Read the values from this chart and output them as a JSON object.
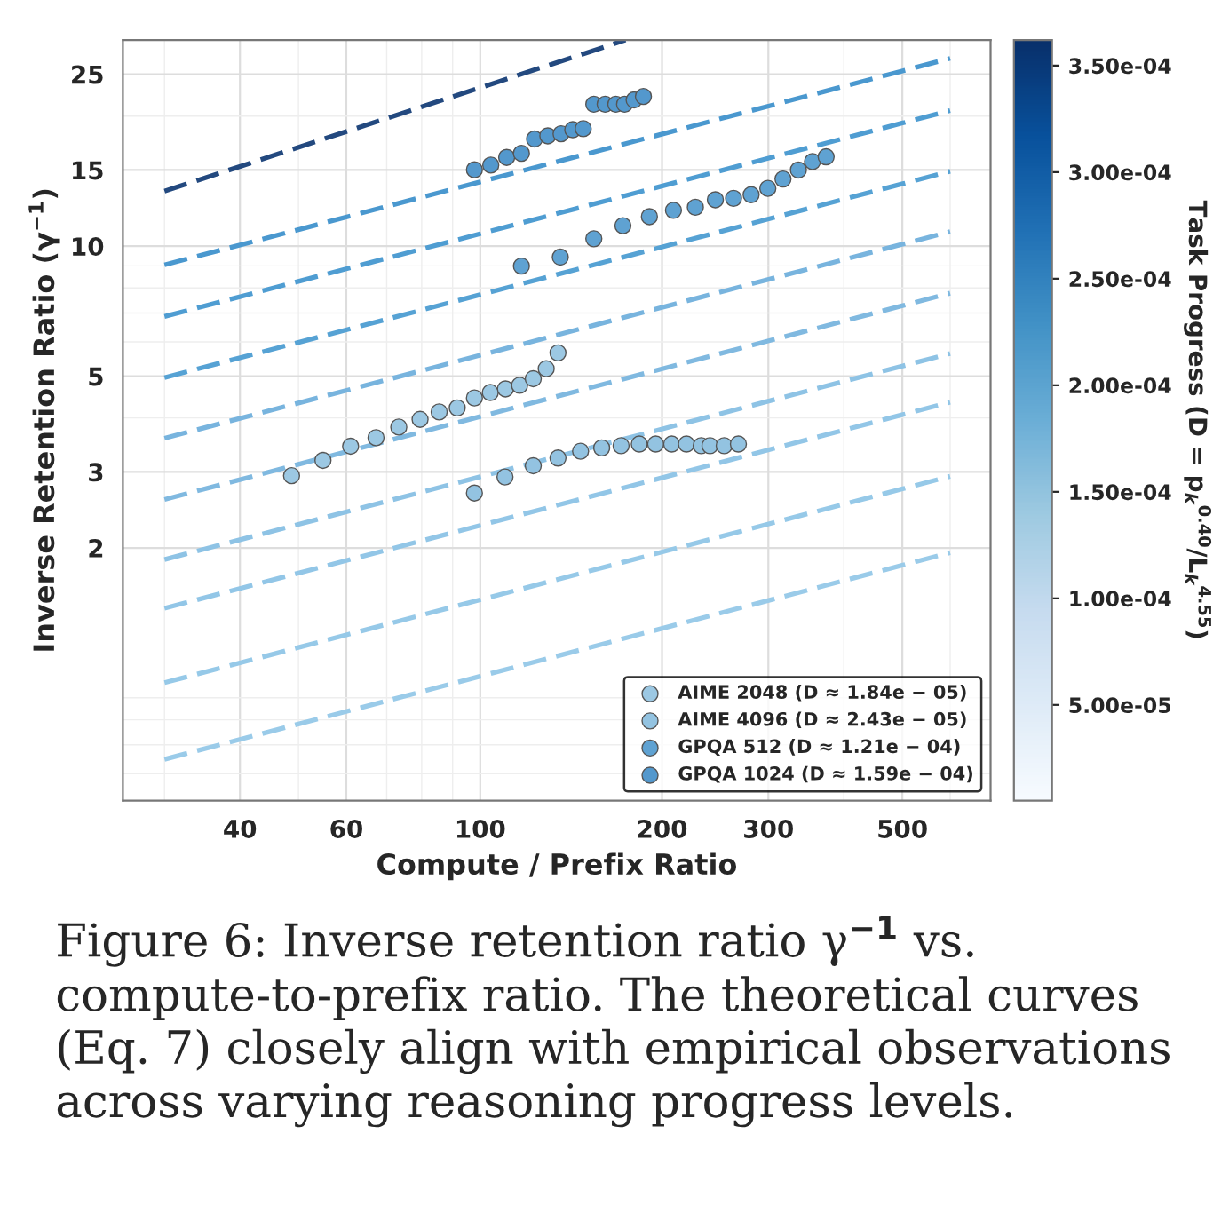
{
  "chart_data": {
    "type": "scatter",
    "xlabel": "Compute / Prefix Ratio",
    "ylabel": "Inverse Retention Ratio (γ$^{−1}$)",
    "clabel": "Task Progress (D = p$_{k}$$^{0.40}$/L$_{k}$$^{4.55}$)",
    "log": "xy",
    "xlim": [
      25.6,
      700
    ],
    "ylim": [
      0.52,
      30
    ],
    "xticks": [
      40,
      60,
      100,
      200,
      300,
      500
    ],
    "yticks": [
      2,
      3,
      5,
      10,
      15,
      25
    ],
    "clim": [
      5.1e-06,
      0.000362
    ],
    "cticks": [
      {
        "value": 5e-05,
        "label": "5.00e-05"
      },
      {
        "value": 0.0001,
        "label": "1.00e-04"
      },
      {
        "value": 0.00015,
        "label": "1.50e-04"
      },
      {
        "value": 0.0002,
        "label": "2.00e-04"
      },
      {
        "value": 0.00025,
        "label": "2.50e-04"
      },
      {
        "value": 0.0003,
        "label": "3.00e-04"
      },
      {
        "value": 0.00035,
        "label": "3.50e-04"
      }
    ],
    "grid": true,
    "legend": "bottom right",
    "series": [
      {
        "type": "line",
        "line_style": "dashed",
        "color": "#23497f",
        "x": [
          30,
          174
        ],
        "values": [
          13.4,
          30
        ]
      },
      {
        "type": "line",
        "line_style": "dashed",
        "color": "#4a98cf",
        "x": [
          30,
          600
        ],
        "values": [
          9.05,
          27.2
        ]
      },
      {
        "type": "line",
        "line_style": "dashed",
        "color": "#4f9dd2",
        "x": [
          30,
          600
        ],
        "values": [
          6.87,
          20.6
        ]
      },
      {
        "type": "line",
        "line_style": "dashed",
        "color": "#56a2d4",
        "x": [
          30,
          600
        ],
        "values": [
          4.96,
          14.9
        ]
      },
      {
        "type": "line",
        "line_style": "dashed",
        "color": "#78b4de",
        "x": [
          30,
          600
        ],
        "values": [
          3.59,
          10.8
        ]
      },
      {
        "type": "line",
        "line_style": "dashed",
        "color": "#80b9e0",
        "x": [
          30,
          600
        ],
        "values": [
          2.59,
          7.78
        ]
      },
      {
        "type": "line",
        "line_style": "dashed",
        "color": "#8ec3e5",
        "x": [
          30,
          600
        ],
        "values": [
          1.88,
          5.64
        ]
      },
      {
        "type": "line",
        "line_style": "dashed",
        "color": "#92c6e7",
        "x": [
          30,
          600
        ],
        "values": [
          1.45,
          4.35
        ]
      },
      {
        "type": "line",
        "line_style": "dashed",
        "color": "#96c9e8",
        "x": [
          30,
          600
        ],
        "values": [
          0.975,
          2.93
        ]
      },
      {
        "type": "line",
        "line_style": "dashed",
        "color": "#9acbe9",
        "x": [
          30,
          600
        ],
        "values": [
          0.648,
          1.95
        ]
      },
      {
        "marker": "circle",
        "name": "AIME 2048 (D ≈ 1.84e − 05)",
        "color": "#9cc8e3",
        "x": [
          48.7,
          54.9,
          61.0,
          67.2,
          73.3,
          79.5,
          85.5,
          91.6,
          97.8,
          103.9,
          110.1,
          116.2,
          122.4,
          128.6,
          134.5
        ],
        "values": [
          2.94,
          3.19,
          3.44,
          3.6,
          3.81,
          3.97,
          4.13,
          4.22,
          4.45,
          4.58,
          4.67,
          4.76,
          4.93,
          5.2,
          5.66
        ]
      },
      {
        "marker": "circle",
        "name": "AIME 4096 (D ≈ 2.43e − 05)",
        "color": "#93c3e1",
        "x": [
          97.8,
          109.9,
          122.4,
          134.5,
          146.6,
          158.9,
          171.1,
          183.4,
          195.2,
          207.5,
          219.5,
          232.2,
          240.1,
          253.5,
          267.6
        ],
        "values": [
          2.68,
          2.92,
          3.1,
          3.23,
          3.35,
          3.41,
          3.45,
          3.48,
          3.48,
          3.48,
          3.48,
          3.45,
          3.45,
          3.45,
          3.48
        ]
      },
      {
        "marker": "circle",
        "name": "GPQA 512 (D ≈ 1.21e − 04)",
        "color": "#5fa2d2",
        "x": [
          117.0,
          135.7,
          154.2,
          172.3,
          190.6,
          208.9,
          227.1,
          245.1,
          262.7,
          280.9,
          299.4,
          317.2,
          336.4,
          355.0,
          373.9
        ],
        "values": [
          8.99,
          9.43,
          10.4,
          11.15,
          11.7,
          12.1,
          12.3,
          12.8,
          12.9,
          13.15,
          13.6,
          14.3,
          15.0,
          15.7,
          16.1
        ]
      },
      {
        "marker": "circle",
        "name": "GPQA 1024 (D ≈ 1.59e − 04)",
        "color": "#5398cd",
        "x": [
          97.8,
          104.1,
          110.6,
          117.0,
          123.0,
          129.4,
          136.1,
          142.3,
          148.1,
          154.2,
          161.0,
          167.7,
          173.4,
          179.8,
          186.3
        ],
        "values": [
          15.02,
          15.4,
          16.05,
          16.4,
          17.7,
          18.0,
          18.2,
          18.6,
          18.7,
          21.3,
          21.3,
          21.3,
          21.3,
          21.8,
          22.2
        ]
      }
    ],
    "annotations": [
      "Figure 6: Inverse retention ratio γ$^{−1}$ vs. compute-to-prefix ratio. The theoretical curves (Eq. 7) closely align with empirical observations across varying reasoning progress levels."
    ]
  }
}
